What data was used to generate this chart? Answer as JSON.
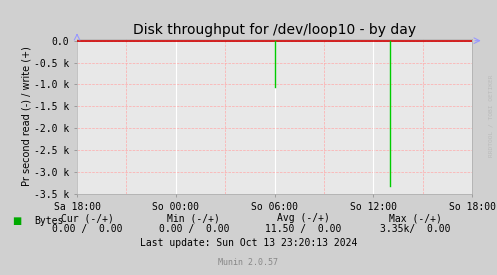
{
  "title": "Disk throughput for /dev/loop10 - by day",
  "ylabel": "Pr second read (-) / write (+)",
  "background_color": "#d0d0d0",
  "plot_bg_color": "#e8e8e8",
  "grid_color_white": "#ffffff",
  "grid_color_pink": "#ffaaaa",
  "line_color": "#00cc00",
  "top_line_color": "#cc0000",
  "axis_arrow_color": "#9999ff",
  "xlim": [
    0,
    86400
  ],
  "ylim": [
    -3500,
    50
  ],
  "yticks": [
    0,
    -500,
    -1000,
    -1500,
    -2000,
    -2500,
    -3000,
    -3500
  ],
  "ytick_labels": [
    "0.0",
    "-0.5 k",
    "-1.0 k",
    "-1.5 k",
    "-2.0 k",
    "-2.5 k",
    "-3.0 k",
    "-3.5 k"
  ],
  "xtick_positions": [
    0,
    21600,
    43200,
    64800,
    86400
  ],
  "xtick_labels": [
    "Sa 18:00",
    "So 00:00",
    "So 06:00",
    "So 12:00",
    "So 18:00"
  ],
  "minor_vline_positions": [
    10800,
    32400,
    54000,
    75600
  ],
  "spike1_x": 43200,
  "spike1_y": -1050,
  "spike2_x": 68400,
  "spike2_y": -3320,
  "legend_label": "Bytes",
  "legend_color": "#00aa00",
  "rrdtool_text": "RRDTOOL / TOBI OETIKER",
  "title_fontsize": 10,
  "tick_fontsize": 7,
  "footer_fontsize": 7,
  "munin_fontsize": 6
}
